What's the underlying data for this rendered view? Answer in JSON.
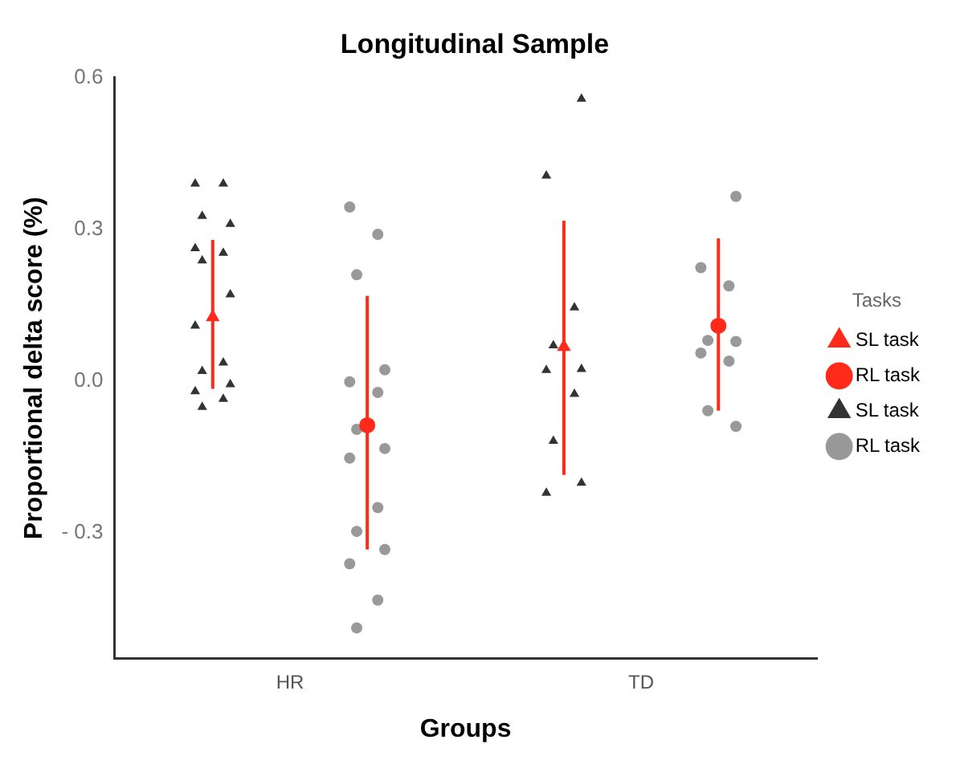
{
  "chart_data": {
    "type": "scatter",
    "title": "Longitudinal Sample",
    "xlabel": "Groups",
    "ylabel": "Proportional delta score (%)",
    "legend_title": "Tasks",
    "categories": [
      "HR",
      "TD"
    ],
    "series": [
      {
        "name": "SL task",
        "color": "#ff2a1a",
        "marker": "triangle",
        "x": [
          "HR",
          "TD"
        ],
        "values": [
          0.126,
          0.067
        ],
        "errors": [
          [
            -0.016,
            0.279
          ],
          [
            -0.186,
            0.317
          ]
        ]
      },
      {
        "name": "RL task",
        "color": "#ff2a1a",
        "marker": "circle",
        "x": [
          "HR",
          "TD"
        ],
        "values": [
          -0.088,
          0.109
        ],
        "errors": [
          [
            -0.334,
            0.168
          ],
          [
            -0.059,
            0.282
          ]
        ]
      },
      {
        "name": "SL task",
        "color": "#333333",
        "marker": "triangle",
        "x": [
          "HR",
          "HR",
          "HR",
          "HR",
          "HR",
          "HR",
          "HR",
          "HR",
          "HR",
          "HR",
          "HR",
          "HR",
          "HR",
          "HR",
          "HR",
          "TD",
          "TD",
          "TD",
          "TD",
          "TD",
          "TD",
          "TD",
          "TD",
          "TD",
          "TD"
        ],
        "values": [
          0.39,
          0.39,
          0.326,
          0.31,
          0.262,
          0.253,
          0.238,
          0.171,
          0.109,
          0.036,
          0.019,
          -0.007,
          -0.021,
          -0.036,
          -0.052,
          0.558,
          0.406,
          0.145,
          0.07,
          0.023,
          0.021,
          -0.026,
          -0.119,
          -0.202,
          -0.222
        ]
      },
      {
        "name": "RL task",
        "color": "#999999",
        "marker": "circle",
        "x": [
          "HR",
          "HR",
          "HR",
          "HR",
          "HR",
          "HR",
          "HR",
          "HR",
          "HR",
          "HR",
          "HR",
          "HR",
          "HR",
          "HR",
          "HR",
          "TD",
          "TD",
          "TD",
          "TD",
          "TD",
          "TD",
          "TD",
          "TD",
          "TD"
        ],
        "values": [
          0.344,
          0.29,
          0.21,
          0.022,
          -0.002,
          -0.023,
          -0.096,
          -0.134,
          -0.153,
          -0.251,
          -0.298,
          -0.334,
          -0.362,
          -0.434,
          -0.489,
          0.365,
          0.224,
          0.188,
          0.08,
          0.078,
          0.055,
          0.039,
          -0.059,
          -0.09
        ]
      }
    ],
    "ylim": [
      -0.55,
      0.6
    ],
    "yticks": [
      {
        "value": -0.3,
        "label": "- 0.3"
      },
      {
        "value": 0,
        "label": "0.0"
      },
      {
        "value": 0.3,
        "label": "0.3"
      },
      {
        "value": 0.6,
        "label": "0.6"
      }
    ],
    "grid": false,
    "legend": "right"
  }
}
